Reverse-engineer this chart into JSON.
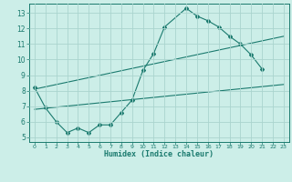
{
  "title": "",
  "xlabel": "Humidex (Indice chaleur)",
  "bg_color": "#cceee8",
  "grid_color": "#aad4ce",
  "line_color": "#1a7a6e",
  "xlim": [
    -0.5,
    23.5
  ],
  "ylim": [
    4.7,
    13.6
  ],
  "xticks": [
    0,
    1,
    2,
    3,
    4,
    5,
    6,
    7,
    8,
    9,
    10,
    11,
    12,
    13,
    14,
    15,
    16,
    17,
    18,
    19,
    20,
    21,
    22,
    23
  ],
  "yticks": [
    5,
    6,
    7,
    8,
    9,
    10,
    11,
    12,
    13
  ],
  "line1_x": [
    0,
    1,
    2,
    3,
    4,
    5,
    6,
    7,
    8,
    9,
    10,
    11,
    12,
    14,
    15,
    16,
    17,
    18,
    19,
    20,
    21
  ],
  "line1_y": [
    8.2,
    6.9,
    6.0,
    5.3,
    5.6,
    5.3,
    5.8,
    5.8,
    6.6,
    7.4,
    9.3,
    10.4,
    12.1,
    13.3,
    12.8,
    12.5,
    12.1,
    11.5,
    11.0,
    10.3,
    9.4
  ],
  "line2_x": [
    0,
    23
  ],
  "line2_y": [
    8.1,
    11.5
  ],
  "line3_x": [
    0,
    23
  ],
  "line3_y": [
    6.8,
    8.4
  ],
  "figsize": [
    3.2,
    2.0
  ],
  "dpi": 100
}
